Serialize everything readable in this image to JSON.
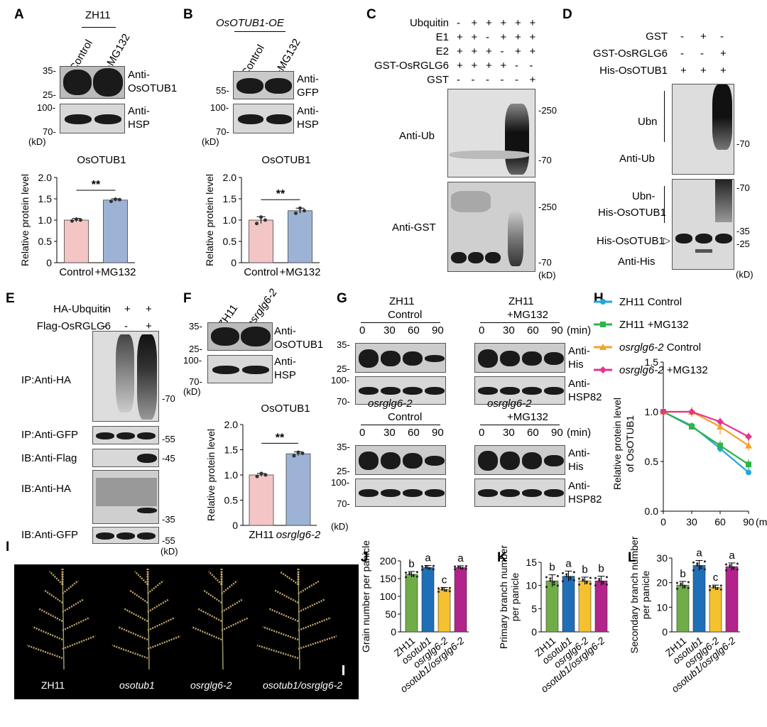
{
  "panels": {
    "A": {
      "letter": "A",
      "line": "ZH11",
      "lanes": [
        "Control",
        "+MG132"
      ],
      "markers": [
        "35-",
        "25-",
        "100-",
        "70-",
        "(kD)"
      ],
      "ab1": "Anti-",
      "ab1b": "OsOTUB1",
      "ab2": "Anti-",
      "ab2b": "HSP"
    },
    "B": {
      "letter": "B",
      "line": "OsOTUB1-OE",
      "lanes": [
        "Control",
        "+MG132"
      ],
      "markers": [
        "55-",
        "100-",
        "70-",
        "(kD)"
      ],
      "ab1": "Anti-",
      "ab1b": "GFP",
      "ab2": "Anti-",
      "ab2b": "HSP"
    },
    "C": {
      "letter": "C",
      "rows": [
        {
          "label": "Ubquitin",
          "signs": [
            "-",
            "+",
            "+",
            "+",
            "+",
            "+"
          ]
        },
        {
          "label": "E1",
          "signs": [
            "+",
            "+",
            "-",
            "+",
            "+",
            "+"
          ]
        },
        {
          "label": "E2",
          "signs": [
            "+",
            "+",
            "+",
            "-",
            "+",
            "+"
          ]
        },
        {
          "label": "GST-OsRGLG6",
          "signs": [
            "+",
            "+",
            "+",
            "+",
            "-",
            "-"
          ]
        },
        {
          "label": "GST",
          "signs": [
            "-",
            "-",
            "-",
            "-",
            "-",
            "+"
          ]
        }
      ],
      "ab1": "Anti-Ub",
      "ab2": "Anti-GST",
      "markers": [
        "-250",
        "-70",
        "-250",
        "-70",
        "(kD)"
      ]
    },
    "D": {
      "letter": "D",
      "rows": [
        {
          "label": "GST",
          "signs": [
            "-",
            "+",
            "-"
          ]
        },
        {
          "label": "GST-OsRGLG6",
          "signs": [
            "-",
            "-",
            "+"
          ]
        },
        {
          "label": "His-OsOTUB1",
          "signs": [
            "+",
            "+",
            "+"
          ]
        }
      ],
      "ubn": "Ubn",
      "ab1": "Anti-Ub",
      "ubn2": "Ubn-",
      "ubn2b": "His-OsOTUB1",
      "his": "His-OsOTUB1",
      "ab2": "Anti-His",
      "markers": [
        "-70",
        "-70",
        "-35",
        "-25",
        "(kD)"
      ]
    },
    "E": {
      "letter": "E",
      "rows": [
        {
          "label": "HA-Ubquitin",
          "signs": [
            "-",
            "+",
            "+"
          ]
        },
        {
          "label": "Flag-OsRGLG6",
          "signs": [
            "-",
            "-",
            "+"
          ]
        }
      ],
      "blots": [
        "IP:Anti-HA",
        "IP:Anti-GFP",
        "IB:Anti-Flag",
        "IB:Anti-HA",
        "IB:Anti-GFP"
      ],
      "markers": [
        "-70",
        "-55",
        "-45",
        "-35",
        "-55",
        "(kD)"
      ]
    },
    "F": {
      "letter": "F",
      "lanes": [
        "ZH11",
        "osrglg6-2"
      ],
      "markers": [
        "35-",
        "25-",
        "100-",
        "70-",
        "(kD)"
      ],
      "ab1": "Anti-",
      "ab1b": "OsOTUB1",
      "ab2": "Anti-",
      "ab2b": "HSP"
    },
    "G": {
      "letter": "G",
      "groups": [
        {
          "title": "ZH11",
          "sub": "Control"
        },
        {
          "title": "ZH11",
          "sub": "+MG132"
        },
        {
          "title": "osrglg6-2",
          "sub": "Control"
        },
        {
          "title": "osrglg6-2",
          "sub": "+MG132"
        }
      ],
      "times": [
        "0",
        "30",
        "60",
        "90"
      ],
      "unit": "(min)",
      "ab1": "Anti-",
      "ab1b": "His",
      "ab2": "Anti-",
      "ab2b": "HSP82",
      "markers": [
        "35-",
        "25-",
        "100-",
        "70-",
        "(kD)"
      ]
    },
    "H": {
      "letter": "H"
    },
    "I": {
      "letter": "I",
      "labels": [
        "ZH11",
        "osotub1",
        "osrglg6-2",
        "osotub1/osrglg6-2"
      ]
    },
    "J": {
      "letter": "J"
    },
    "K": {
      "letter": "K"
    },
    "L": {
      "letter": "L"
    }
  },
  "chart_data": [
    {
      "id": "A",
      "type": "bar",
      "title": "OsOTUB1",
      "categories": [
        "Control",
        "+MG132"
      ],
      "values": [
        1.0,
        1.47
      ],
      "errors": [
        0.04,
        0.03
      ],
      "colors": [
        "#f4c5c5",
        "#9db3d6"
      ],
      "points": [
        [
          0.98,
          1.02,
          1.0
        ],
        [
          1.44,
          1.49,
          1.48
        ]
      ],
      "ylabel": "Relative protein level",
      "ylim": [
        0,
        2.0
      ],
      "yticks": [
        "0",
        "0.5",
        "1.0",
        "1.5",
        "2.0"
      ],
      "significance": "**"
    },
    {
      "id": "B",
      "type": "bar",
      "title": "OsOTUB1",
      "categories": [
        "Control",
        "+MG132"
      ],
      "values": [
        1.0,
        1.22
      ],
      "errors": [
        0.08,
        0.06
      ],
      "colors": [
        "#f4c5c5",
        "#9db3d6"
      ],
      "points": [
        [
          0.92,
          1.07,
          1.0
        ],
        [
          1.16,
          1.28,
          1.22
        ]
      ],
      "ylabel": "Relative protein level",
      "ylim": [
        0,
        2.0
      ],
      "yticks": [
        "0",
        "0.5",
        "1.0",
        "1.5",
        "2.0"
      ],
      "significance": "**"
    },
    {
      "id": "F",
      "type": "bar",
      "title": "OsOTUB1",
      "categories": [
        "ZH11",
        "osrglg6-2"
      ],
      "values": [
        1.0,
        1.42
      ],
      "errors": [
        0.03,
        0.04
      ],
      "colors": [
        "#f4c5c5",
        "#9db3d6"
      ],
      "points": [
        [
          0.97,
          1.03,
          1.0
        ],
        [
          1.38,
          1.45,
          1.43
        ]
      ],
      "ylabel": "Relative protein level",
      "ylim": [
        0,
        2.0
      ],
      "yticks": [
        "0",
        "0.5",
        "1.0",
        "1.5",
        "2.0"
      ],
      "significance": "**"
    },
    {
      "id": "H",
      "type": "line",
      "ylabel": "Relative protein level",
      "ylabel2": "of OsOTUB1",
      "x": [
        0,
        30,
        60,
        90
      ],
      "xticks": [
        "0",
        "30",
        "60",
        "90"
      ],
      "xunit": "(min)",
      "ylim": [
        0,
        1.5
      ],
      "yticks": [
        "0.0",
        "0.5",
        "1.0",
        "1.5"
      ],
      "series": [
        {
          "name": "ZH11 Control",
          "color": "#1ea7e1",
          "marker": "circle",
          "values": [
            1.0,
            0.86,
            0.63,
            0.39
          ],
          "errors": [
            0.02,
            0.03,
            0.04,
            0.02
          ]
        },
        {
          "name": "ZH11 +MG132",
          "color": "#2fb34a",
          "marker": "square",
          "values": [
            1.0,
            0.85,
            0.66,
            0.47
          ],
          "errors": [
            0.02,
            0.03,
            0.05,
            0.05
          ]
        },
        {
          "name": "osrglg6-2  Control",
          "color": "#f2a32b",
          "marker": "triangle",
          "values": [
            1.0,
            1.0,
            0.85,
            0.66
          ],
          "errors": [
            0.03,
            0.05,
            0.08,
            0.05
          ]
        },
        {
          "name": "osrglg6-2  +MG132",
          "color": "#e6338e",
          "marker": "diamond",
          "values": [
            1.0,
            1.0,
            0.9,
            0.75
          ],
          "errors": [
            0.02,
            0.03,
            0.04,
            0.04
          ]
        }
      ]
    },
    {
      "id": "J",
      "type": "bar",
      "ylabel": "Grain number per panicle",
      "categories": [
        "ZH11",
        "osotub1",
        "osrglg6-2",
        "osotub1/osrglg6-2"
      ],
      "values": [
        162,
        181,
        119,
        181
      ],
      "errors": [
        8,
        6,
        6,
        5
      ],
      "letters": [
        "b",
        "a",
        "c",
        "a"
      ],
      "colors": [
        "#70ad47",
        "#1f6fb8",
        "#f5c12e",
        "#b3238c"
      ],
      "ylim": [
        0,
        200
      ],
      "yticks": [
        "0",
        "50",
        "100",
        "150",
        "200"
      ]
    },
    {
      "id": "K",
      "type": "bar",
      "ylabel": "Primary branch number",
      "ylabel2": "per panicle",
      "categories": [
        "ZH11",
        "osotub1",
        "osrglg6-2",
        "osotub1/osrglg6-2"
      ],
      "values": [
        11,
        12,
        11,
        11
      ],
      "errors": [
        1.3,
        1.1,
        0.8,
        1.0
      ],
      "letters": [
        "b",
        "a",
        "b",
        "b"
      ],
      "colors": [
        "#70ad47",
        "#1f6fb8",
        "#f5c12e",
        "#b3238c"
      ],
      "ylim": [
        0,
        15
      ],
      "yticks": [
        "0",
        "5",
        "10",
        "15"
      ]
    },
    {
      "id": "L",
      "type": "bar",
      "ylabel": "Secondary branch number",
      "ylabel2": "per panicle",
      "categories": [
        "ZH11",
        "osotub1",
        "osrglg6-2",
        "osotub1/osrglg6-2"
      ],
      "values": [
        19,
        27,
        18,
        26.5
      ],
      "errors": [
        1.5,
        2,
        1,
        1.5
      ],
      "letters": [
        "b",
        "a",
        "c",
        "a"
      ],
      "colors": [
        "#70ad47",
        "#1f6fb8",
        "#f5c12e",
        "#b3238c"
      ],
      "ylim": [
        0,
        30
      ],
      "yticks": [
        "0",
        "10",
        "20",
        "30"
      ]
    }
  ]
}
